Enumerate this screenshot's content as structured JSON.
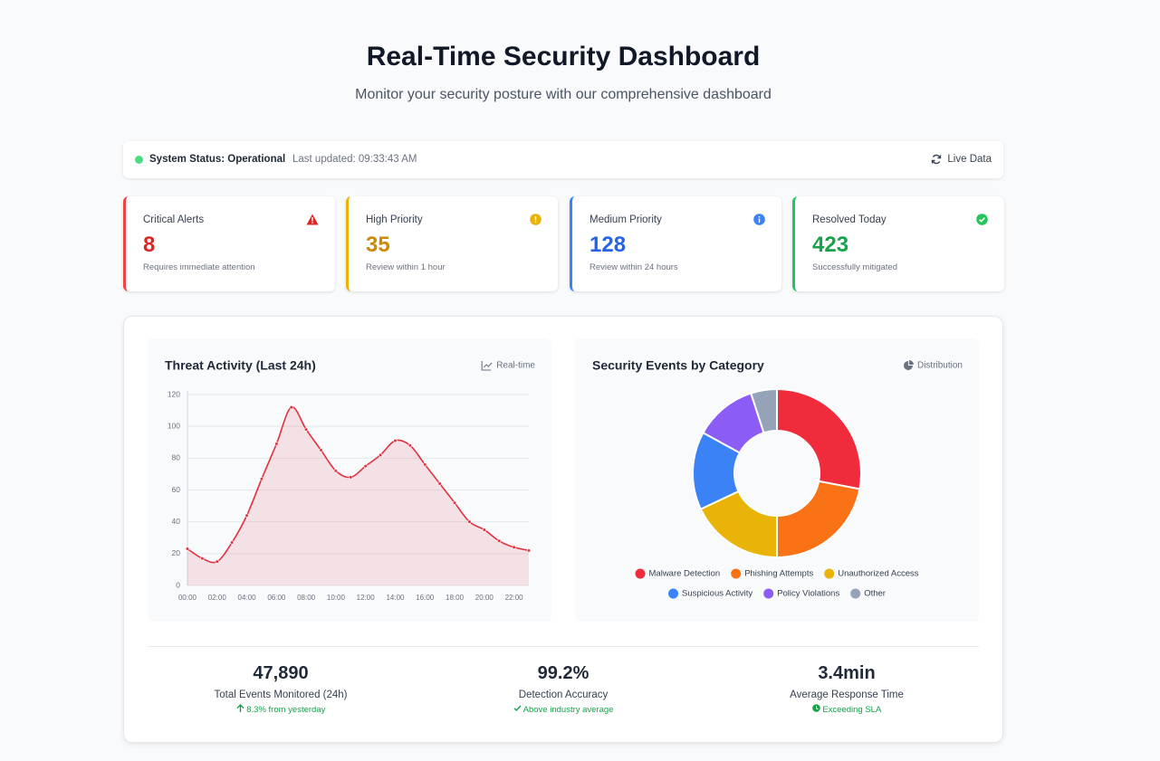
{
  "header": {
    "title": "Real-Time Security Dashboard",
    "subtitle": "Monitor your security posture with our comprehensive dashboard"
  },
  "status": {
    "label": "System Status: Operational",
    "updated": "Last updated: 09:33:43 AM",
    "live": "Live Data"
  },
  "cards": [
    {
      "title": "Critical Alerts",
      "value": 8,
      "note": "Requires immediate attention"
    },
    {
      "title": "High Priority",
      "value": 35,
      "note": "Review within 1 hour"
    },
    {
      "title": "Medium Priority",
      "value": 128,
      "note": "Review within 24 hours"
    },
    {
      "title": "Resolved Today",
      "value": 423,
      "note": "Successfully mitigated"
    }
  ],
  "chart_data": [
    {
      "type": "line",
      "title": "Threat Activity (Last 24h)",
      "tag": "Real-time",
      "categories": [
        "00:00",
        null,
        "02:00",
        null,
        "04:00",
        null,
        "06:00",
        null,
        "08:00",
        null,
        "10:00",
        null,
        "12:00",
        null,
        "14:00",
        null,
        "16:00",
        null,
        "18:00",
        null,
        "20:00",
        null,
        "22:00",
        null
      ],
      "values": [
        23,
        17,
        15,
        27,
        44,
        67,
        89,
        112,
        98,
        85,
        72,
        68,
        75,
        82,
        91,
        88,
        76,
        64,
        52,
        40,
        35,
        28,
        24,
        22
      ],
      "color": "#e0313f",
      "ylim": [
        0,
        120
      ],
      "yticks": [
        0,
        20,
        40,
        60,
        80,
        100,
        120
      ],
      "grid": true
    },
    {
      "type": "pie",
      "title": "Security Events by Category",
      "tag": "Distribution",
      "donut": true,
      "categories": [
        "Malware Detection",
        "Phishing Attempts",
        "Unauthorized Access",
        "Suspicious Activity",
        "Policy Violations",
        "Other"
      ],
      "values": [
        28,
        22,
        18,
        15,
        12,
        5
      ],
      "colors": [
        "#f02b3b",
        "#f97316",
        "#eab308",
        "#3b82f6",
        "#8b5cf6",
        "#94a3b8"
      ]
    }
  ],
  "stats": [
    {
      "value": "47,890",
      "label": "Total Events Monitored (24h)",
      "note": "8.3% from yesterday"
    },
    {
      "value": "99.2%",
      "label": "Detection Accuracy",
      "note": "Above industry average"
    },
    {
      "value": "3.4min",
      "label": "Average Response Time",
      "note": "Exceeding SLA"
    }
  ]
}
